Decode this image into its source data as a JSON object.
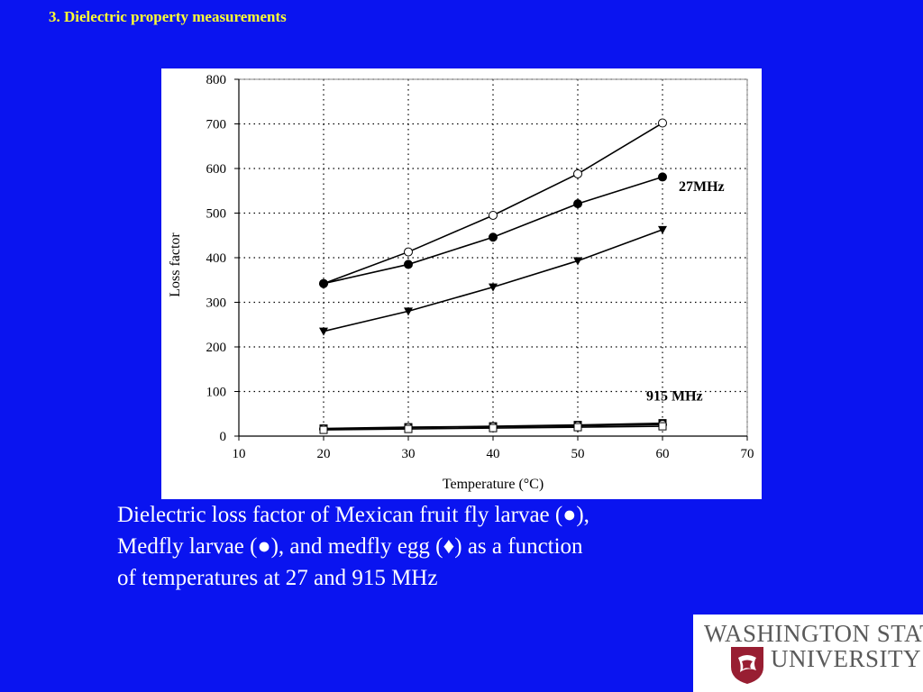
{
  "slide": {
    "title": "3. Dielectric property measurements",
    "caption_line1": "Dielectric loss factor of Mexican fruit fly larvae (●),",
    "caption_line2": "Medfly larvae (●), and medfly egg (♦) as a function",
    "caption_line3": "of temperatures at 27 and 915 MHz"
  },
  "logo": {
    "line1": "WASHINGTON STATE",
    "line2": "UNIVERSITY",
    "color": "#5a5a5a",
    "seal_color": "#981e32"
  },
  "colors": {
    "background": "#0a14f0",
    "title": "#ffff33",
    "caption": "#ffffff"
  },
  "chart_data": {
    "type": "line",
    "title": "",
    "xlabel": "Temperature (°C)",
    "ylabel": "Loss factor",
    "xlim": [
      10,
      70
    ],
    "ylim": [
      0,
      800
    ],
    "xticks": [
      10,
      20,
      30,
      40,
      50,
      60,
      70
    ],
    "yticks": [
      0,
      100,
      200,
      300,
      400,
      500,
      600,
      700,
      800
    ],
    "grid": "dotted",
    "x": [
      20,
      30,
      40,
      50,
      60
    ],
    "series": [
      {
        "marker": "open-circle",
        "frequency": "27MHz",
        "values": [
          342,
          413,
          495,
          588,
          702
        ]
      },
      {
        "marker": "filled-circle",
        "frequency": "27MHz",
        "values": [
          342,
          385,
          446,
          521,
          581
        ]
      },
      {
        "marker": "filled-triangle-down",
        "frequency": "27MHz",
        "values": [
          235,
          280,
          334,
          393,
          463
        ]
      },
      {
        "marker": "filled-square",
        "frequency": "915 MHz",
        "values": [
          17,
          20,
          22,
          25,
          29
        ]
      },
      {
        "marker": "open-circle",
        "frequency": "915 MHz",
        "values": [
          16,
          19,
          21,
          23,
          26
        ]
      },
      {
        "marker": "open-square",
        "frequency": "915 MHz",
        "values": [
          14,
          16,
          18,
          20,
          22
        ]
      }
    ],
    "annotations": [
      {
        "text": "27MHz",
        "x": 60,
        "y": 560
      },
      {
        "text": "915 MHz",
        "x": 60,
        "y": 90
      }
    ]
  }
}
